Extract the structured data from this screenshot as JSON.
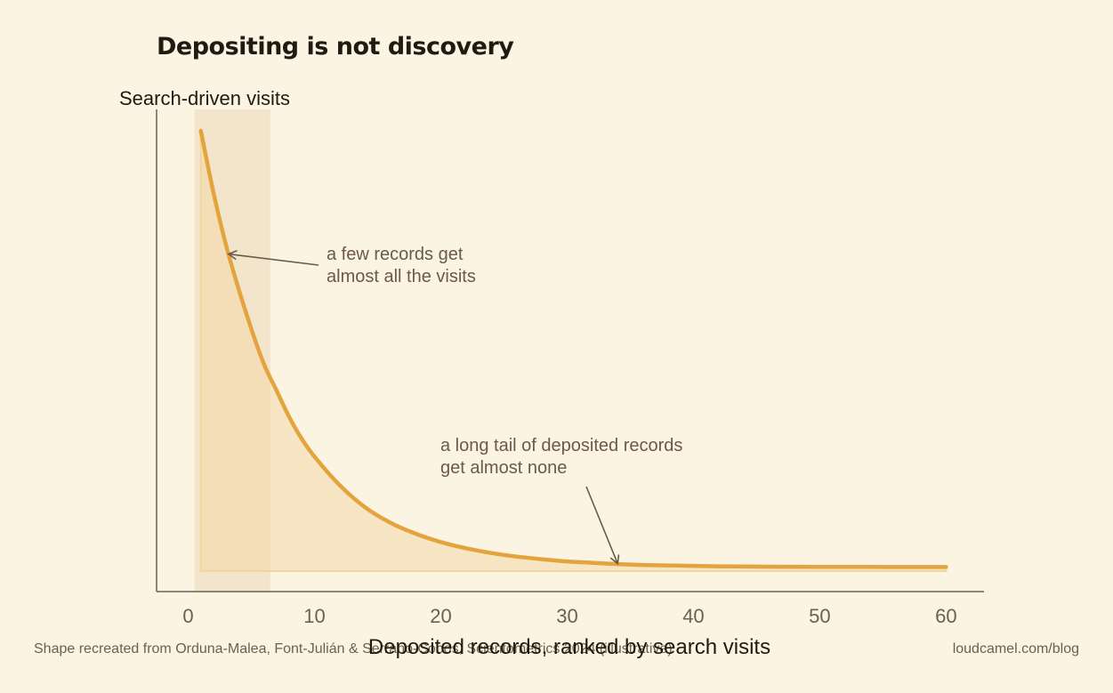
{
  "chart_data": {
    "type": "area",
    "title": "Depositing is not discovery",
    "ylabel": "Search-driven visits",
    "xlabel": "Deposited records, ranked by search visits",
    "xlim": [
      -2.5,
      63
    ],
    "ylim": [
      0,
      1.06
    ],
    "xticks": [
      0,
      10,
      20,
      30,
      40,
      50,
      60
    ],
    "highlight_range": [
      0.5,
      6.5
    ],
    "series": [
      {
        "x": [
          1,
          2,
          3,
          4,
          5,
          6,
          7,
          8,
          9,
          10,
          12,
          14,
          16,
          18,
          20,
          22,
          24,
          26,
          28,
          30,
          32,
          34,
          36,
          38,
          40,
          42,
          44,
          46,
          48,
          50,
          52,
          54,
          56,
          58,
          60
        ],
        "y": [
          1.0,
          0.86,
          0.74,
          0.64,
          0.55,
          0.47,
          0.41,
          0.35,
          0.3,
          0.26,
          0.195,
          0.145,
          0.11,
          0.085,
          0.066,
          0.052,
          0.041,
          0.033,
          0.027,
          0.022,
          0.019,
          0.016,
          0.014,
          0.013,
          0.012,
          0.011,
          0.0105,
          0.01,
          0.0098,
          0.0096,
          0.0095,
          0.0094,
          0.0093,
          0.0093,
          0.0093
        ],
        "color": "#e3a43e"
      }
    ],
    "annotations": [
      {
        "lines": [
          "a few records get",
          "almost all the visits"
        ],
        "target": [
          3.2,
          0.72
        ]
      },
      {
        "lines": [
          "a long tail of deposited records",
          "get almost none"
        ],
        "target": [
          34,
          0.017
        ]
      }
    ]
  },
  "footer": {
    "source": "Shape recreated from Orduna-Malea, Font-Julián & Serrano-Cobos, Scientometrics 2024 (illustrative)",
    "site": "loudcamel.com/blog"
  },
  "colors": {
    "background": "#fcf4e2",
    "curve": "#e3a43e",
    "fill": "#f5deb0",
    "highlight": "#e8d3b0",
    "axis": "#6b6152"
  }
}
